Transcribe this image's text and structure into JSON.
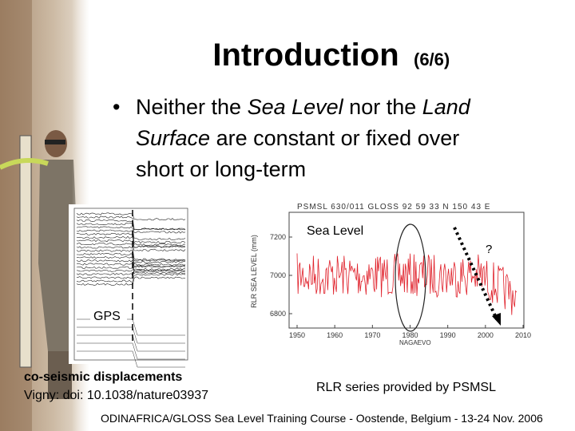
{
  "title": {
    "main": "Introduction",
    "part": "(6/6)"
  },
  "bullet": {
    "lines": [
      [
        "Neither the ",
        "Sea Level",
        " nor the ",
        "Land"
      ],
      [
        "Surface",
        " are constant or fixed over"
      ],
      [
        "short or long-term"
      ]
    ]
  },
  "sea_level_figure": {
    "header": "PSMSL 630/011 GLOSS 92 59 33 N 150 43 E",
    "y_label": "RLR SEA LEVEL (mm)",
    "x_label": "NAGAEVO",
    "xticks": [
      1950,
      1960,
      1970,
      1980,
      1990,
      2000,
      2010
    ],
    "yticks": [
      7200,
      7000,
      6800
    ],
    "label": "Sea Level",
    "question": "?"
  },
  "gps_figure": {
    "label": "GPS"
  },
  "captions": {
    "gps_title": "co-seismic displacements",
    "gps_ref": "Vigny: doi: 10.1038/nature03937",
    "sea_level": "RLR series provided by PSMSL"
  },
  "footer": "ODINAFRICA/GLOSS Sea Level Training Course - Oostende, Belgium - 13-24 Nov. 2006"
}
